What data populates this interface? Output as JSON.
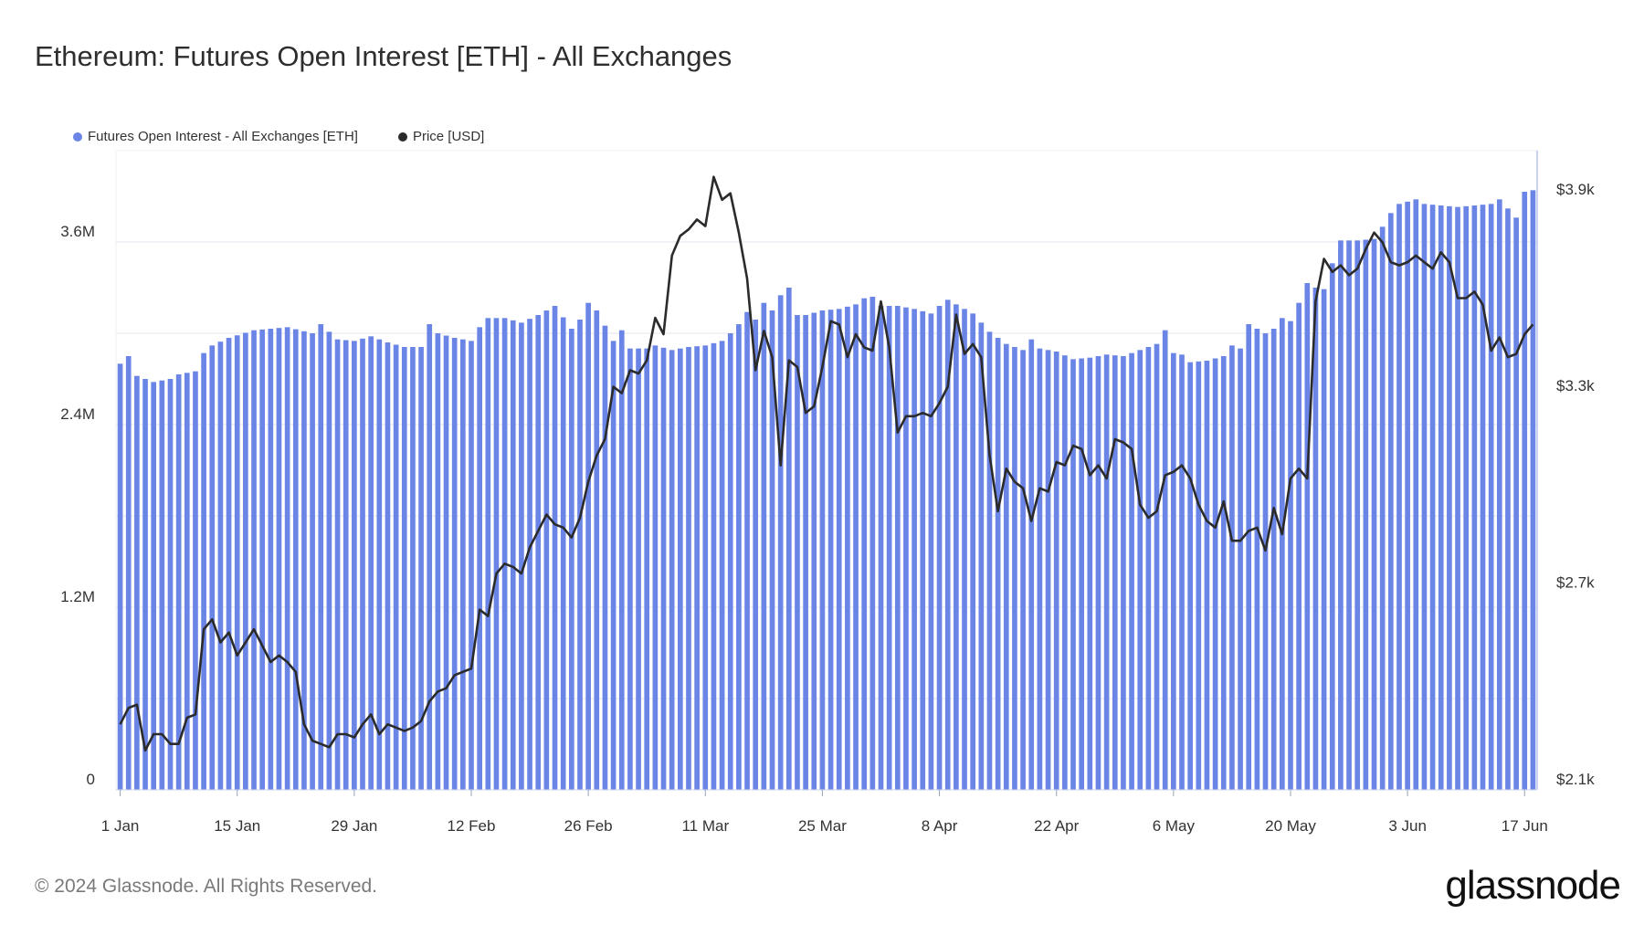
{
  "page": {
    "title": "Ethereum: Futures Open Interest [ETH] - All Exchanges",
    "copyright": "© 2024 Glassnode. All Rights Reserved.",
    "logo": "glassnode"
  },
  "colors": {
    "bars": "#6b85e6",
    "price": "#2b2b2b",
    "grid": "#e3e6ee",
    "axis": "#b9c3ea"
  },
  "chart_data": {
    "type": "bar",
    "title": "Ethereum: Futures Open Interest [ETH] - All Exchanges",
    "xlabel": "",
    "ylabel": "",
    "legend_placement": "top-left",
    "grid": true,
    "x": {
      "start": "1 Jan",
      "days": 169,
      "tick_labels": [
        "1 Jan",
        "15 Jan",
        "29 Jan",
        "12 Feb",
        "26 Feb",
        "11 Mar",
        "25 Mar",
        "8 Apr",
        "22 Apr",
        "6 May",
        "20 May",
        "3 Jun",
        "17 Jun"
      ],
      "tick_days": [
        0,
        14,
        28,
        42,
        56,
        70,
        84,
        98,
        112,
        126,
        140,
        154,
        168
      ]
    },
    "y_left": {
      "min": 0,
      "max": 4200000,
      "ticks": [
        0,
        1200000,
        2400000,
        3600000
      ],
      "tick_labels": [
        "0",
        "1.2M",
        "2.4M",
        "3.6M"
      ]
    },
    "y_right": {
      "min": 2100,
      "max": 4050,
      "ticks": [
        2100,
        2700,
        3300,
        3900
      ],
      "tick_labels": [
        "$2.1k",
        "$2.7k",
        "$3.3k",
        "$3.9k"
      ]
    },
    "series": [
      {
        "name": "Futures Open Interest - All Exchanges [ETH]",
        "axis": "left",
        "kind": "bar",
        "anchors": [
          [
            0,
            2800000
          ],
          [
            1,
            2850000
          ],
          [
            2,
            2720000
          ],
          [
            3,
            2700000
          ],
          [
            4,
            2680000
          ],
          [
            6,
            2700000
          ],
          [
            7,
            2730000
          ],
          [
            9,
            2750000
          ],
          [
            10,
            2870000
          ],
          [
            11,
            2920000
          ],
          [
            13,
            2970000
          ],
          [
            16,
            3020000
          ],
          [
            18,
            3030000
          ],
          [
            20,
            3040000
          ],
          [
            23,
            3000000
          ],
          [
            24,
            3060000
          ],
          [
            26,
            2960000
          ],
          [
            28,
            2950000
          ],
          [
            30,
            2980000
          ],
          [
            32,
            2940000
          ],
          [
            34,
            2910000
          ],
          [
            36,
            2910000
          ],
          [
            37,
            3060000
          ],
          [
            38,
            3000000
          ],
          [
            40,
            2970000
          ],
          [
            42,
            2950000
          ],
          [
            43,
            3040000
          ],
          [
            44,
            3100000
          ],
          [
            46,
            3100000
          ],
          [
            48,
            3070000
          ],
          [
            50,
            3120000
          ],
          [
            52,
            3180000
          ],
          [
            54,
            3030000
          ],
          [
            55,
            3090000
          ],
          [
            56,
            3200000
          ],
          [
            57,
            3150000
          ],
          [
            58,
            3050000
          ],
          [
            59,
            2950000
          ],
          [
            60,
            3020000
          ],
          [
            61,
            2900000
          ],
          [
            63,
            2900000
          ],
          [
            64,
            2920000
          ],
          [
            66,
            2890000
          ],
          [
            68,
            2910000
          ],
          [
            70,
            2920000
          ],
          [
            72,
            2950000
          ],
          [
            73,
            3000000
          ],
          [
            74,
            3060000
          ],
          [
            75,
            3140000
          ],
          [
            76,
            3090000
          ],
          [
            77,
            3200000
          ],
          [
            78,
            3150000
          ],
          [
            79,
            3250000
          ],
          [
            80,
            3300000
          ],
          [
            81,
            3120000
          ],
          [
            82,
            3120000
          ],
          [
            84,
            3150000
          ],
          [
            86,
            3160000
          ],
          [
            88,
            3190000
          ],
          [
            89,
            3230000
          ],
          [
            90,
            3240000
          ],
          [
            91,
            3180000
          ],
          [
            93,
            3180000
          ],
          [
            95,
            3160000
          ],
          [
            97,
            3130000
          ],
          [
            98,
            3180000
          ],
          [
            99,
            3220000
          ],
          [
            100,
            3190000
          ],
          [
            102,
            3130000
          ],
          [
            104,
            3010000
          ],
          [
            106,
            2930000
          ],
          [
            108,
            2890000
          ],
          [
            109,
            2960000
          ],
          [
            110,
            2900000
          ],
          [
            112,
            2880000
          ],
          [
            114,
            2830000
          ],
          [
            116,
            2840000
          ],
          [
            118,
            2860000
          ],
          [
            120,
            2850000
          ],
          [
            122,
            2890000
          ],
          [
            124,
            2930000
          ],
          [
            125,
            3020000
          ],
          [
            126,
            2870000
          ],
          [
            127,
            2860000
          ],
          [
            128,
            2810000
          ],
          [
            130,
            2820000
          ],
          [
            132,
            2850000
          ],
          [
            133,
            2920000
          ],
          [
            134,
            2900000
          ],
          [
            135,
            3060000
          ],
          [
            137,
            3000000
          ],
          [
            138,
            3030000
          ],
          [
            139,
            3100000
          ],
          [
            140,
            3080000
          ],
          [
            141,
            3200000
          ],
          [
            142,
            3330000
          ],
          [
            143,
            3300000
          ],
          [
            144,
            3290000
          ],
          [
            145,
            3460000
          ],
          [
            146,
            3610000
          ],
          [
            148,
            3610000
          ],
          [
            150,
            3620000
          ],
          [
            151,
            3700000
          ],
          [
            152,
            3790000
          ],
          [
            153,
            3850000
          ],
          [
            155,
            3880000
          ],
          [
            156,
            3850000
          ],
          [
            158,
            3840000
          ],
          [
            160,
            3830000
          ],
          [
            162,
            3840000
          ],
          [
            164,
            3850000
          ],
          [
            165,
            3880000
          ],
          [
            166,
            3820000
          ],
          [
            167,
            3760000
          ],
          [
            168,
            3930000
          ],
          [
            169,
            3940000
          ]
        ]
      },
      {
        "name": "Price [USD]",
        "axis": "right",
        "kind": "line",
        "anchors": [
          [
            0,
            2300
          ],
          [
            1,
            2350
          ],
          [
            2,
            2360
          ],
          [
            3,
            2220
          ],
          [
            4,
            2270
          ],
          [
            5,
            2270
          ],
          [
            6,
            2240
          ],
          [
            7,
            2240
          ],
          [
            8,
            2320
          ],
          [
            9,
            2330
          ],
          [
            10,
            2590
          ],
          [
            11,
            2620
          ],
          [
            12,
            2550
          ],
          [
            13,
            2580
          ],
          [
            14,
            2510
          ],
          [
            15,
            2550
          ],
          [
            16,
            2590
          ],
          [
            17,
            2540
          ],
          [
            18,
            2490
          ],
          [
            19,
            2510
          ],
          [
            20,
            2490
          ],
          [
            21,
            2460
          ],
          [
            22,
            2300
          ],
          [
            23,
            2250
          ],
          [
            24,
            2240
          ],
          [
            25,
            2230
          ],
          [
            26,
            2270
          ],
          [
            27,
            2270
          ],
          [
            28,
            2260
          ],
          [
            29,
            2300
          ],
          [
            30,
            2330
          ],
          [
            31,
            2270
          ],
          [
            32,
            2300
          ],
          [
            33,
            2290
          ],
          [
            34,
            2280
          ],
          [
            35,
            2290
          ],
          [
            36,
            2310
          ],
          [
            37,
            2370
          ],
          [
            38,
            2400
          ],
          [
            39,
            2410
          ],
          [
            40,
            2450
          ],
          [
            41,
            2460
          ],
          [
            42,
            2470
          ],
          [
            43,
            2650
          ],
          [
            44,
            2630
          ],
          [
            45,
            2760
          ],
          [
            46,
            2790
          ],
          [
            47,
            2780
          ],
          [
            48,
            2760
          ],
          [
            49,
            2840
          ],
          [
            50,
            2890
          ],
          [
            51,
            2940
          ],
          [
            52,
            2910
          ],
          [
            53,
            2900
          ],
          [
            54,
            2870
          ],
          [
            55,
            2930
          ],
          [
            56,
            3040
          ],
          [
            57,
            3120
          ],
          [
            58,
            3170
          ],
          [
            59,
            3330
          ],
          [
            60,
            3310
          ],
          [
            61,
            3380
          ],
          [
            62,
            3370
          ],
          [
            63,
            3410
          ],
          [
            64,
            3540
          ],
          [
            65,
            3490
          ],
          [
            66,
            3730
          ],
          [
            67,
            3790
          ],
          [
            68,
            3810
          ],
          [
            69,
            3840
          ],
          [
            70,
            3820
          ],
          [
            71,
            3970
          ],
          [
            72,
            3900
          ],
          [
            73,
            3920
          ],
          [
            74,
            3800
          ],
          [
            75,
            3660
          ],
          [
            76,
            3380
          ],
          [
            77,
            3500
          ],
          [
            78,
            3420
          ],
          [
            79,
            3090
          ],
          [
            80,
            3410
          ],
          [
            81,
            3390
          ],
          [
            82,
            3250
          ],
          [
            83,
            3270
          ],
          [
            84,
            3390
          ],
          [
            85,
            3530
          ],
          [
            86,
            3520
          ],
          [
            87,
            3420
          ],
          [
            88,
            3490
          ],
          [
            89,
            3450
          ],
          [
            90,
            3440
          ],
          [
            91,
            3590
          ],
          [
            92,
            3450
          ],
          [
            93,
            3190
          ],
          [
            94,
            3240
          ],
          [
            95,
            3240
          ],
          [
            96,
            3250
          ],
          [
            97,
            3240
          ],
          [
            98,
            3280
          ],
          [
            99,
            3330
          ],
          [
            100,
            3550
          ],
          [
            101,
            3430
          ],
          [
            102,
            3460
          ],
          [
            103,
            3420
          ],
          [
            104,
            3120
          ],
          [
            105,
            2950
          ],
          [
            106,
            3080
          ],
          [
            107,
            3040
          ],
          [
            108,
            3020
          ],
          [
            109,
            2920
          ],
          [
            110,
            3020
          ],
          [
            111,
            3010
          ],
          [
            112,
            3100
          ],
          [
            113,
            3090
          ],
          [
            114,
            3150
          ],
          [
            115,
            3140
          ],
          [
            116,
            3060
          ],
          [
            117,
            3090
          ],
          [
            118,
            3050
          ],
          [
            119,
            3170
          ],
          [
            120,
            3160
          ],
          [
            121,
            3140
          ],
          [
            122,
            2970
          ],
          [
            123,
            2930
          ],
          [
            124,
            2950
          ],
          [
            125,
            3060
          ],
          [
            126,
            3070
          ],
          [
            127,
            3090
          ],
          [
            128,
            3050
          ],
          [
            129,
            2970
          ],
          [
            130,
            2920
          ],
          [
            131,
            2900
          ],
          [
            132,
            2980
          ],
          [
            133,
            2860
          ],
          [
            134,
            2860
          ],
          [
            135,
            2890
          ],
          [
            136,
            2900
          ],
          [
            137,
            2830
          ],
          [
            138,
            2960
          ],
          [
            139,
            2880
          ],
          [
            140,
            3050
          ],
          [
            141,
            3080
          ],
          [
            142,
            3050
          ],
          [
            143,
            3590
          ],
          [
            144,
            3720
          ],
          [
            145,
            3680
          ],
          [
            146,
            3700
          ],
          [
            147,
            3670
          ],
          [
            148,
            3690
          ],
          [
            149,
            3750
          ],
          [
            150,
            3800
          ],
          [
            151,
            3770
          ],
          [
            152,
            3710
          ],
          [
            153,
            3700
          ],
          [
            154,
            3710
          ],
          [
            155,
            3730
          ],
          [
            156,
            3710
          ],
          [
            157,
            3690
          ],
          [
            158,
            3740
          ],
          [
            159,
            3710
          ],
          [
            160,
            3600
          ],
          [
            161,
            3600
          ],
          [
            162,
            3620
          ],
          [
            163,
            3580
          ],
          [
            164,
            3440
          ],
          [
            165,
            3480
          ],
          [
            166,
            3420
          ],
          [
            167,
            3430
          ],
          [
            168,
            3490
          ],
          [
            169,
            3520
          ]
        ]
      }
    ]
  }
}
